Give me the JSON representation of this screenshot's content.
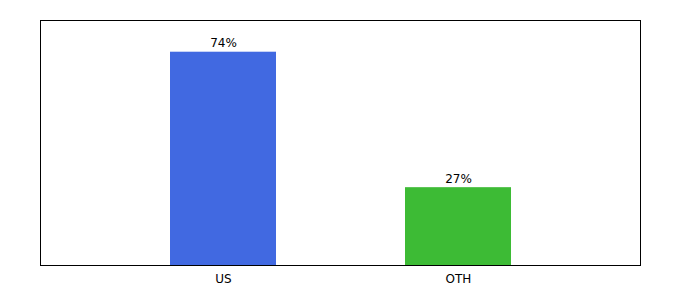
{
  "chart_data": {
    "type": "bar",
    "categories": [
      "US",
      "OTH"
    ],
    "values": [
      74,
      27
    ],
    "value_labels": [
      "74%",
      "27%"
    ],
    "colors": [
      "#4169e1",
      "#3dbb35"
    ],
    "ylim": [
      0,
      85
    ],
    "yticks": [],
    "data_labels": true,
    "tick_labels": "x",
    "grid": false
  }
}
